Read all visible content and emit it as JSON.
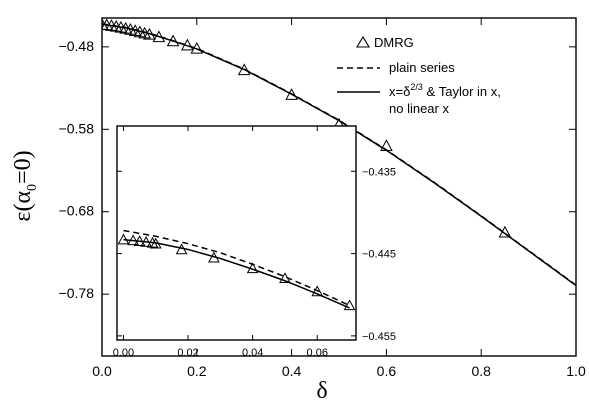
{
  "chart_data": {
    "type": "line",
    "main": {
      "xlabel": "δ",
      "ylabel": "ε(α",
      "ylabel_sub": "0",
      "ylabel_tail": "=0)",
      "xlim": [
        0.0,
        1.0
      ],
      "ylim": [
        -0.855,
        -0.445
      ],
      "xticks": [
        0.0,
        0.2,
        0.4,
        0.6,
        0.8,
        1.0
      ],
      "xtick_labels": [
        "0.0",
        "0.2",
        "0.4",
        "0.6",
        "0.8",
        "1.0"
      ],
      "yticks": [
        -0.48,
        -0.58,
        -0.68,
        -0.78
      ],
      "ytick_labels": [
        "−0.48",
        "−0.58",
        "−0.68",
        "−0.78"
      ],
      "series": [
        {
          "name": "DMRG",
          "style": "triangle-markers",
          "x": [
            0.0,
            0.01,
            0.02,
            0.03,
            0.04,
            0.05,
            0.06,
            0.07,
            0.08,
            0.09,
            0.1,
            0.12,
            0.15,
            0.18,
            0.2,
            0.3,
            0.4,
            0.5,
            0.6,
            0.85
          ],
          "y": [
            -0.453,
            -0.4535,
            -0.4543,
            -0.4553,
            -0.4564,
            -0.4577,
            -0.459,
            -0.4605,
            -0.462,
            -0.4635,
            -0.465,
            -0.468,
            -0.473,
            -0.478,
            -0.482,
            -0.508,
            -0.538,
            -0.574,
            -0.6,
            -0.705
          ]
        },
        {
          "name": "plain series",
          "style": "dashed",
          "x": [
            0.0,
            0.05,
            0.1,
            0.15,
            0.2,
            0.3,
            0.4,
            0.5,
            0.6,
            0.7,
            0.8,
            0.9,
            1.0
          ],
          "y": [
            -0.452,
            -0.4565,
            -0.4635,
            -0.4725,
            -0.482,
            -0.507,
            -0.537,
            -0.569,
            -0.605,
            -0.644,
            -0.685,
            -0.727,
            -0.769
          ]
        },
        {
          "name_line1": "x=δ",
          "name_sup": "2/3",
          "name_line1_tail": " & Taylor in x,",
          "name_line2": "no linear x",
          "style": "solid",
          "x": [
            0.0,
            0.05,
            0.1,
            0.15,
            0.2,
            0.3,
            0.4,
            0.5,
            0.6,
            0.7,
            0.8,
            0.9,
            1.0
          ],
          "y": [
            -0.4525,
            -0.457,
            -0.464,
            -0.473,
            -0.4825,
            -0.5075,
            -0.5375,
            -0.5695,
            -0.6055,
            -0.6445,
            -0.6855,
            -0.7275,
            -0.7695
          ]
        }
      ],
      "legend": {
        "placement": "top-right",
        "labels": [
          "DMRG",
          "plain series"
        ]
      }
    },
    "inset": {
      "xlim": [
        -0.002,
        0.072
      ],
      "ylim": [
        -0.4555,
        -0.4295
      ],
      "xticks": [
        0.0,
        0.02,
        0.04,
        0.06
      ],
      "xtick_labels": [
        "0.00",
        "0.02",
        "0.04",
        "0.06"
      ],
      "yticks": [
        -0.435,
        -0.445,
        -0.455
      ],
      "ytick_labels": [
        "−0.435",
        "−0.445",
        "−0.455"
      ],
      "series": [
        {
          "style": "triangle-markers",
          "x": [
            0.0,
            0.003,
            0.005,
            0.007,
            0.009,
            0.01,
            0.018,
            0.028,
            0.04,
            0.05,
            0.06,
            0.07
          ],
          "y": [
            -0.4433,
            -0.4434,
            -0.4435,
            -0.4436,
            -0.4437,
            -0.4438,
            -0.4445,
            -0.4455,
            -0.4468,
            -0.448,
            -0.4496,
            -0.4513
          ]
        },
        {
          "style": "dashed",
          "x": [
            0.0,
            0.01,
            0.02,
            0.03,
            0.04,
            0.05,
            0.06,
            0.07
          ],
          "y": [
            -0.4422,
            -0.4429,
            -0.4438,
            -0.4449,
            -0.4463,
            -0.4478,
            -0.4495,
            -0.4513
          ]
        },
        {
          "style": "solid",
          "x": [
            0.0,
            0.01,
            0.02,
            0.03,
            0.04,
            0.05,
            0.06,
            0.07
          ],
          "y": [
            -0.4433,
            -0.4437,
            -0.4445,
            -0.4456,
            -0.4469,
            -0.4483,
            -0.4499,
            -0.4516
          ]
        }
      ]
    }
  }
}
